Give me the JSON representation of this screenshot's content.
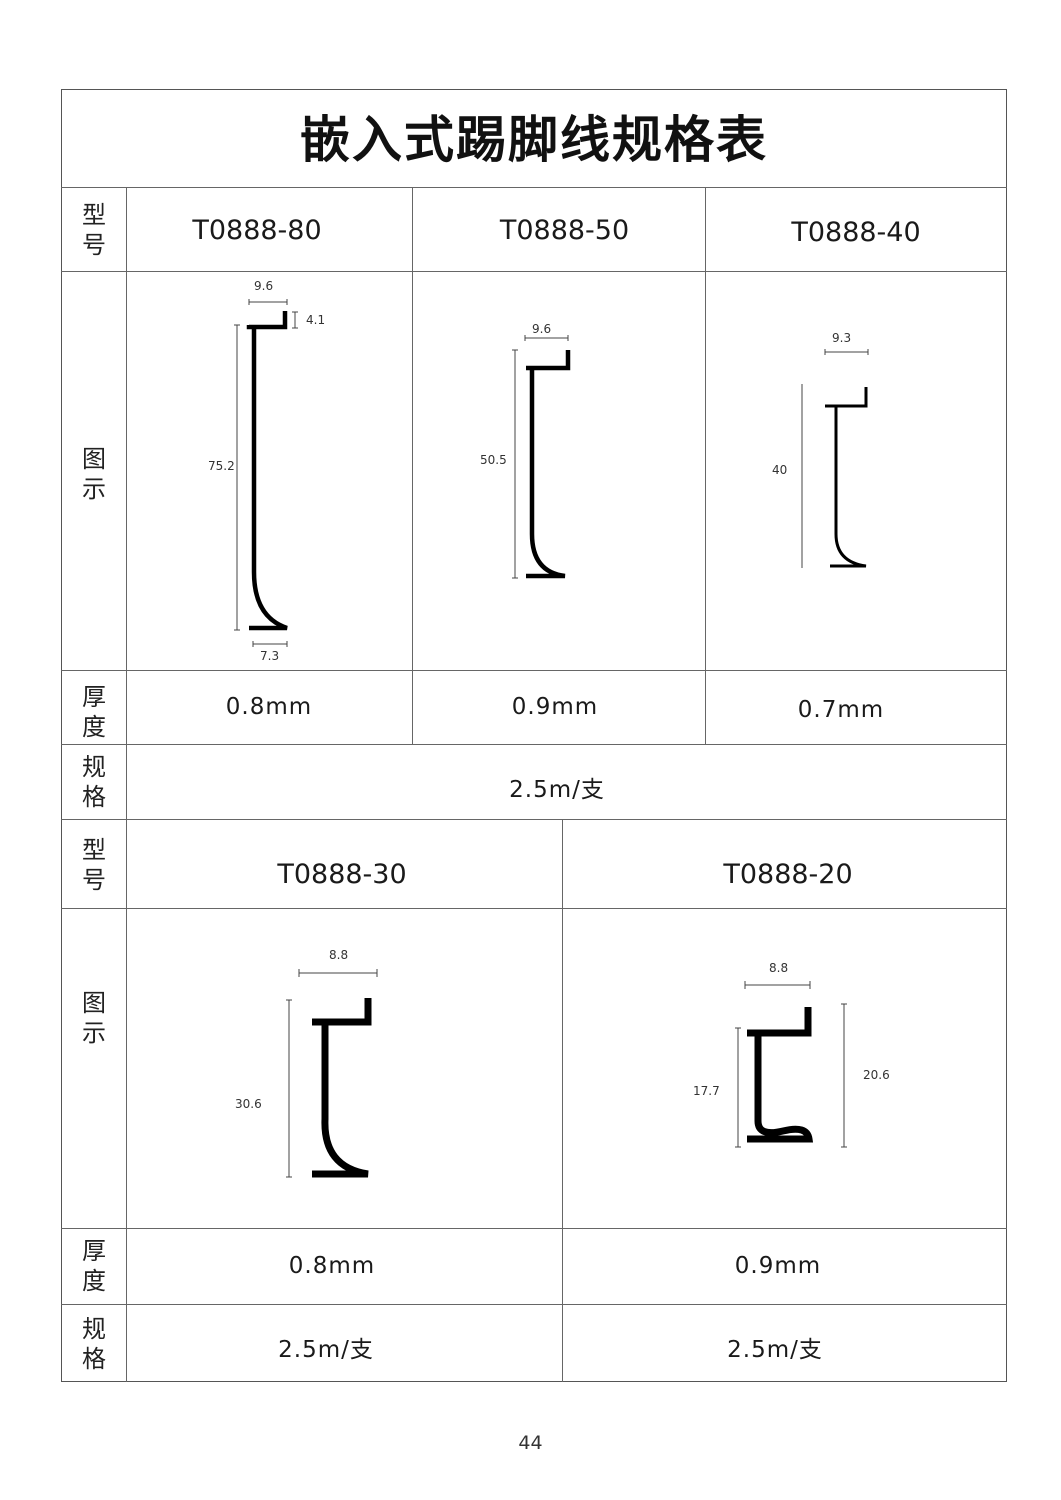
{
  "title": "嵌入式踢脚线规格表",
  "labels": {
    "model": "型号",
    "diagram": "图示",
    "thickness": "厚度",
    "spec": "规格"
  },
  "table1": {
    "models": [
      "T0888-80",
      "T0888-50",
      "T0888-40"
    ],
    "thickness": [
      "0.8mm",
      "0.9mm",
      "0.7mm"
    ],
    "spec": "2.5m/支",
    "dims": {
      "d80": {
        "top": "9.6",
        "lip": "4.1",
        "height": "75.2",
        "bottom": "7.3"
      },
      "d50": {
        "top": "9.6",
        "height": "50.5"
      },
      "d40": {
        "top": "9.3",
        "height": "40"
      }
    }
  },
  "table2": {
    "models": [
      "T0888-30",
      "T0888-20"
    ],
    "thickness": [
      "0.8mm",
      "0.9mm"
    ],
    "spec": [
      "2.5m/支",
      "2.5m/支"
    ],
    "dims": {
      "d30": {
        "top": "8.8",
        "height": "30.6"
      },
      "d20": {
        "top": "8.8",
        "inner": "17.7",
        "outer": "20.6"
      }
    }
  },
  "page_number": "44"
}
